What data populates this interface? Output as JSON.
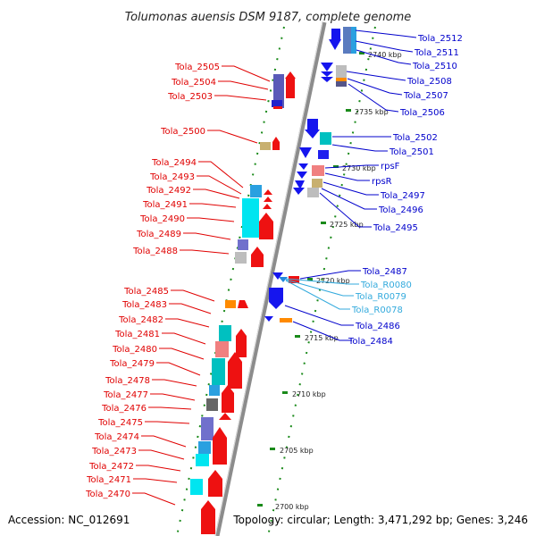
{
  "title": "Tolumonas auensis DSM 9187, complete genome",
  "accession": "Accession: NC_012691",
  "summary": "Topology: circular; Length: 3,471,292 bp; Genes: 3,246",
  "colors": {
    "left_label": "#e00000",
    "right_label": "#0000cc",
    "rna_label": "#33aadd"
  },
  "scale_ticks": [
    "2740 kbp",
    "2735 kbp",
    "2730 kbp",
    "2725 kbp",
    "2720 kbp",
    "2715 kbp",
    "2710 kbp",
    "2705 kbp",
    "2700 kbp"
  ],
  "left_labels": [
    "Tola_2505",
    "Tola_2504",
    "Tola_2503",
    "Tola_2500",
    "Tola_2494",
    "Tola_2493",
    "Tola_2492",
    "Tola_2491",
    "Tola_2490",
    "Tola_2489",
    "Tola_2488",
    "Tola_2485",
    "Tola_2483",
    "Tola_2482",
    "Tola_2481",
    "Tola_2480",
    "Tola_2479",
    "Tola_2478",
    "Tola_2477",
    "Tola_2476",
    "Tola_2475",
    "Tola_2474",
    "Tola_2473",
    "Tola_2472",
    "Tola_2471",
    "Tola_2470"
  ],
  "right_labels": [
    "Tola_2512",
    "Tola_2511",
    "Tola_2510",
    "Tola_2508",
    "Tola_2507",
    "Tola_2506",
    "Tola_2502",
    "Tola_2501",
    "rpsF",
    "rpsR",
    "Tola_2497",
    "Tola_2496",
    "Tola_2495",
    "Tola_2487",
    "Tola_R0080",
    "Tola_R0079",
    "Tola_R0078",
    "Tola_2486",
    "Tola_2484"
  ],
  "rna_labels": [
    "Tola_R0080",
    "Tola_R0079",
    "Tola_R0078"
  ]
}
